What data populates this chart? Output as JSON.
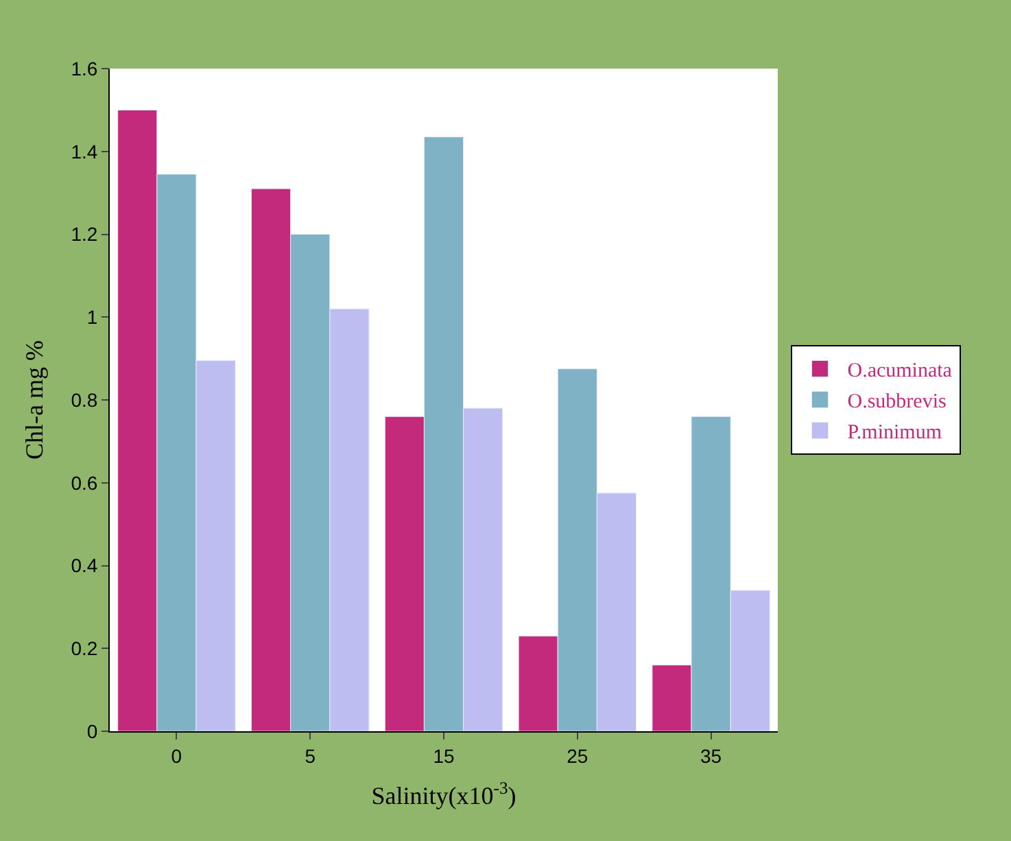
{
  "chart_data": {
    "type": "bar",
    "xlabel": "Salinity(x10$^{-3}$)",
    "ylabel": "Chl-a mg %",
    "categories": [
      "0",
      "5",
      "15",
      "25",
      "35"
    ],
    "series": [
      {
        "name": "O.acuminata",
        "color": "#c42a7c",
        "values": [
          1.5,
          1.31,
          0.76,
          0.23,
          0.16
        ]
      },
      {
        "name": "O.subbrevis",
        "color": "#80b2c6",
        "values": [
          1.345,
          1.2,
          1.435,
          0.875,
          0.76
        ]
      },
      {
        "name": "P.minimum",
        "color": "#bdbdf2",
        "values": [
          0.895,
          1.02,
          0.78,
          0.575,
          0.34
        ]
      }
    ],
    "ylim": [
      0,
      1.6
    ],
    "yticks": [
      0,
      0.2,
      0.4,
      0.6,
      0.8,
      1,
      1.2,
      1.4,
      1.6
    ],
    "legend": "right"
  }
}
